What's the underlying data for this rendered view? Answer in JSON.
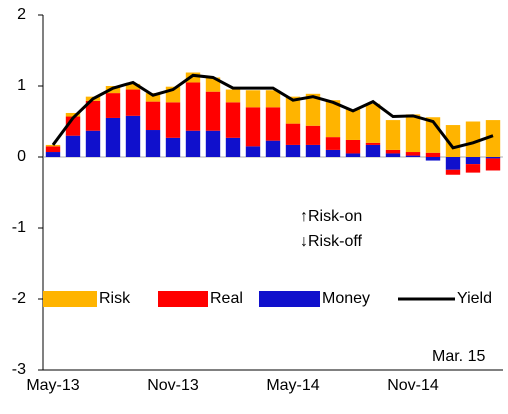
{
  "chart_data": {
    "type": "bar",
    "categories": [
      "May-13",
      null,
      null,
      null,
      null,
      null,
      "Nov-13",
      null,
      null,
      null,
      null,
      null,
      "May-14",
      null,
      null,
      null,
      null,
      null,
      "Nov-14",
      null,
      null,
      null,
      null
    ],
    "series": [
      {
        "name": "Risk",
        "color": "#ffb400",
        "values": [
          0.02,
          0.05,
          0.06,
          0.1,
          0.08,
          0.12,
          0.22,
          0.14,
          0.2,
          0.18,
          0.24,
          0.24,
          0.38,
          0.45,
          0.52,
          0.43,
          0.55,
          0.42,
          0.53,
          0.5,
          0.45,
          0.5,
          0.52
        ]
      },
      {
        "name": "Real",
        "color": "#ff0000",
        "values": [
          0.08,
          0.27,
          0.42,
          0.35,
          0.37,
          0.4,
          0.5,
          0.68,
          0.55,
          0.5,
          0.55,
          0.47,
          0.3,
          0.27,
          0.18,
          0.19,
          0.03,
          0.05,
          0.05,
          0.06,
          -0.07,
          -0.12,
          -0.17
        ]
      },
      {
        "name": "Money",
        "color": "#1010cc",
        "values": [
          0.07,
          0.3,
          0.37,
          0.55,
          0.58,
          0.38,
          0.27,
          0.37,
          0.37,
          0.27,
          0.15,
          0.23,
          0.17,
          0.17,
          0.1,
          0.05,
          0.17,
          0.05,
          0.02,
          -0.05,
          -0.18,
          -0.1,
          -0.02
        ]
      },
      {
        "name": "Yield",
        "type": "line",
        "color": "#000000",
        "values": [
          0.17,
          0.55,
          0.82,
          0.97,
          1.05,
          0.87,
          0.95,
          1.15,
          1.12,
          0.97,
          0.97,
          0.97,
          0.8,
          0.85,
          0.77,
          0.65,
          0.78,
          0.57,
          0.58,
          0.5,
          0.13,
          0.2,
          0.3
        ]
      }
    ],
    "annotations": [
      "↑Risk-on",
      "↓Risk-off",
      "Mar. 15"
    ],
    "ylim": [
      -3,
      2
    ],
    "yticks": [
      -3,
      -2,
      -1,
      0,
      1,
      2
    ],
    "grid": false
  }
}
